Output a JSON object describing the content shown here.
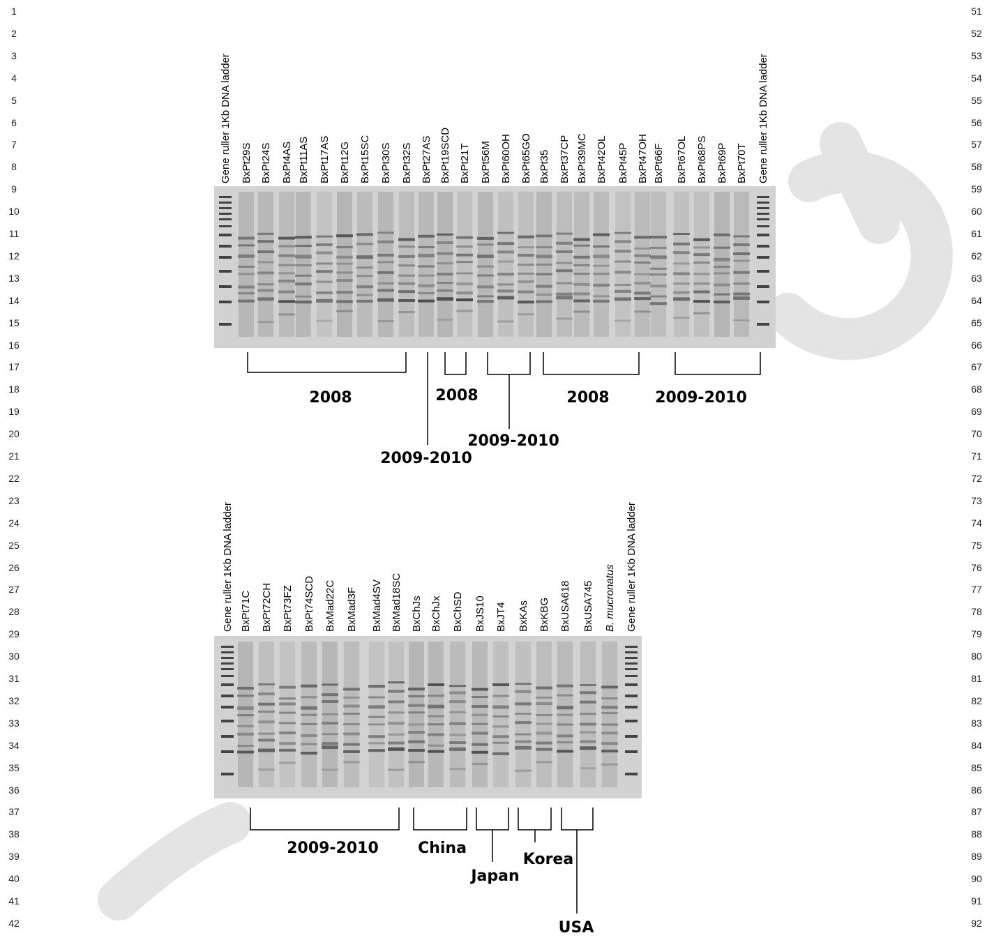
{
  "line_numbers": {
    "left": [
      "1",
      "2",
      "3",
      "4",
      "5",
      "6",
      "7",
      "8",
      "9",
      "10",
      "11",
      "12",
      "13",
      "14",
      "15",
      "16",
      "17",
      "18",
      "19",
      "20",
      "21",
      "22",
      "23",
      "24",
      "25",
      "26",
      "27",
      "28",
      "29",
      "30",
      "31",
      "32",
      "33",
      "34",
      "35",
      "36",
      "37",
      "38",
      "39",
      "40",
      "41",
      "42"
    ],
    "right": [
      "51",
      "52",
      "53",
      "54",
      "55",
      "56",
      "57",
      "58",
      "59",
      "60",
      "61",
      "62",
      "63",
      "64",
      "65",
      "66",
      "67",
      "68",
      "69",
      "70",
      "71",
      "72",
      "73",
      "74",
      "75",
      "76",
      "77",
      "78",
      "79",
      "80",
      "81",
      "82",
      "83",
      "84",
      "85",
      "86",
      "87",
      "88",
      "89",
      "90",
      "91",
      "92"
    ]
  },
  "gel_top": {
    "lanes": [
      "Gene ruller 1Kb DNA ladder",
      "BxPt29S",
      "BxPt24S",
      "BxPt4AS",
      "BxPt11AS",
      "BxPt17AS",
      "BxPt12G",
      "BxPt15SC",
      "BxPt30S",
      "BxPt32S",
      "BxPt27AS",
      "BxPt19SCD",
      "BxPt21T",
      "BxPt56M",
      "BxPt60OH",
      "BxPt65GO",
      "BxPt35",
      "BxPt37CP",
      "BxPt39MC",
      "BxPt42OL",
      "BxPt45P",
      "BxPt47OH",
      "BxPt66F",
      "BxPt67OL",
      "BxPt68PS",
      "BxPt69P",
      "BxPt70T",
      "Gene ruller 1Kb DNA ladder"
    ],
    "groups": [
      "2008",
      "2009-2010",
      "2008",
      "2009-2010",
      "2008",
      "2009-2010"
    ]
  },
  "gel_bottom": {
    "lanes": [
      "Gene ruller 1Kb DNA ladder",
      "BxPt71C",
      "BxPt72CH",
      "BxPt73FZ",
      "BxPt74SCD",
      "BxMad22C",
      "BxMad3F",
      "BxMad4SV",
      "BxMad18SC",
      "BxChJs",
      "BxChJx",
      "BxChSD",
      "BxJS10",
      "BxJT4",
      "BxKAs",
      "BxKBG",
      "BxUSA618",
      "BxUSA745",
      "B. mucronatus",
      "Gene ruller 1Kb DNA ladder"
    ],
    "groups": [
      "2009-2010",
      "China",
      "Japan",
      "Korea",
      "USA"
    ]
  }
}
